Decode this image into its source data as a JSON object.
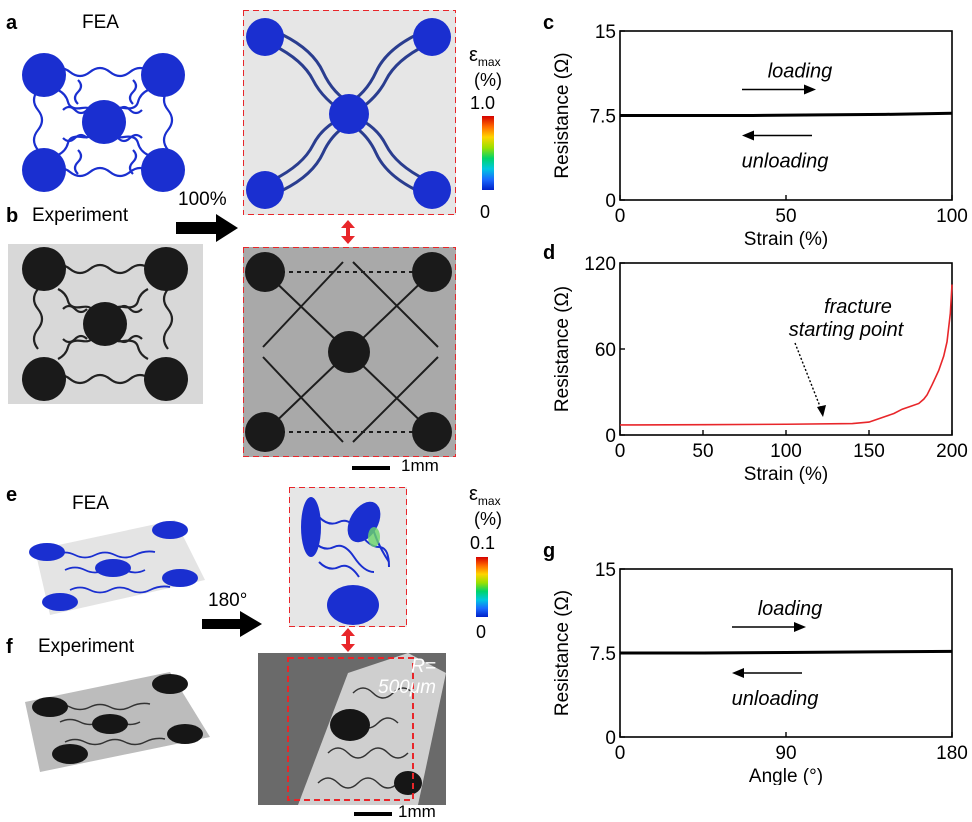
{
  "panels": {
    "a": {
      "letter": "a",
      "title": "FEA"
    },
    "b": {
      "letter": "b",
      "title": "Experiment"
    },
    "c": {
      "letter": "c"
    },
    "d": {
      "letter": "d"
    },
    "e": {
      "letter": "e",
      "title": "FEA"
    },
    "f": {
      "letter": "f",
      "title": "Experiment"
    },
    "g": {
      "letter": "g"
    }
  },
  "stretch_label": "100%",
  "bend_label": "180°",
  "scalebar_top": "1mm",
  "scalebar_bottom": "1mm",
  "radius_label": "R=\n500μm",
  "colorbar_top": {
    "symbol": "ε",
    "sub": "max",
    "unit": "(%)",
    "max": "1.0",
    "min": "0"
  },
  "colorbar_bottom": {
    "symbol": "ε",
    "sub": "max",
    "unit": "(%)",
    "max": "0.1",
    "min": "0"
  },
  "colors": {
    "fea_blue": "#1a2fd0",
    "dashed_red": "#e8262a",
    "curve_red": "#e8262a"
  },
  "chart_data": [
    {
      "id": "c",
      "type": "line",
      "xlabel": "Strain (%)",
      "ylabel": "Resistance (Ω)",
      "xlim": [
        0,
        100
      ],
      "ylim": [
        0,
        15
      ],
      "xticks": [
        "0",
        "50",
        "100"
      ],
      "yticks": [
        "0",
        "7.5",
        "15"
      ],
      "series": [
        {
          "x": [
            0,
            20,
            40,
            60,
            80,
            100
          ],
          "y": [
            7.5,
            7.5,
            7.5,
            7.55,
            7.6,
            7.7
          ],
          "color": "#000000"
        }
      ],
      "annotations": [
        "loading",
        "unloading"
      ]
    },
    {
      "id": "d",
      "type": "line",
      "xlabel": "Strain (%)",
      "ylabel": "Resistance (Ω)",
      "xlim": [
        0,
        200
      ],
      "ylim": [
        0,
        120
      ],
      "xticks": [
        "0",
        "50",
        "100",
        "150",
        "200"
      ],
      "yticks": [
        "0",
        "60",
        "120"
      ],
      "series": [
        {
          "x": [
            0,
            50,
            100,
            140,
            150,
            155,
            160,
            165,
            170,
            175,
            180,
            183,
            185,
            188,
            190,
            192,
            195,
            197,
            199,
            200
          ],
          "y": [
            7,
            7.2,
            7.5,
            8,
            9,
            11,
            13,
            15,
            18,
            20,
            22,
            25,
            28,
            35,
            40,
            45,
            55,
            65,
            85,
            105
          ],
          "color": "#e8262a"
        }
      ],
      "annotations": [
        "fracture\nstarting point"
      ]
    },
    {
      "id": "g",
      "type": "line",
      "xlabel": "Angle (°)",
      "ylabel": "Resistance (Ω)",
      "xlim": [
        0,
        180
      ],
      "ylim": [
        0,
        15
      ],
      "xticks": [
        "0",
        "90",
        "180"
      ],
      "yticks": [
        "0",
        "7.5",
        "15"
      ],
      "series": [
        {
          "x": [
            0,
            45,
            90,
            135,
            180
          ],
          "y": [
            7.5,
            7.5,
            7.55,
            7.6,
            7.65
          ],
          "color": "#000000"
        }
      ],
      "annotations": [
        "loading",
        "unloading"
      ]
    }
  ]
}
